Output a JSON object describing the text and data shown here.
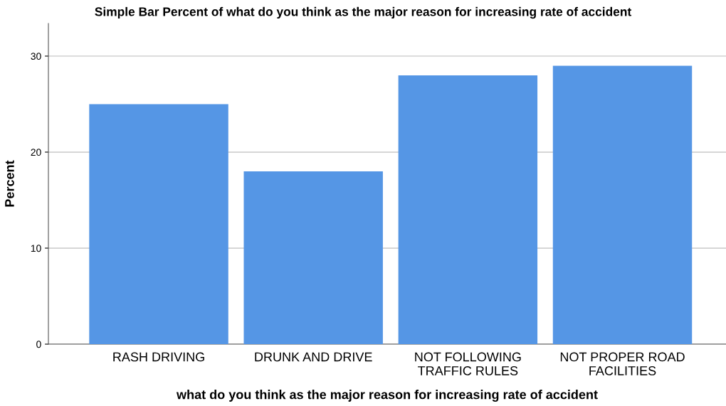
{
  "chart_data": {
    "type": "bar",
    "title": "Simple Bar Percent of what do you think as the major reason for increasing rate of accident",
    "xlabel": "what do you think as the major reason for increasing rate of accident",
    "ylabel": "Percent",
    "categories": [
      "RASH DRIVING",
      "DRUNK AND DRIVE",
      "NOT FOLLOWING\nTRAFFIC RULES",
      "NOT PROPER ROAD\nFACILITIES"
    ],
    "values": [
      25,
      18,
      28,
      29
    ],
    "color": "#5596e5",
    "ylim": [
      0,
      33.4
    ],
    "yticks": [
      0,
      10,
      20,
      30
    ],
    "grid": "y"
  }
}
